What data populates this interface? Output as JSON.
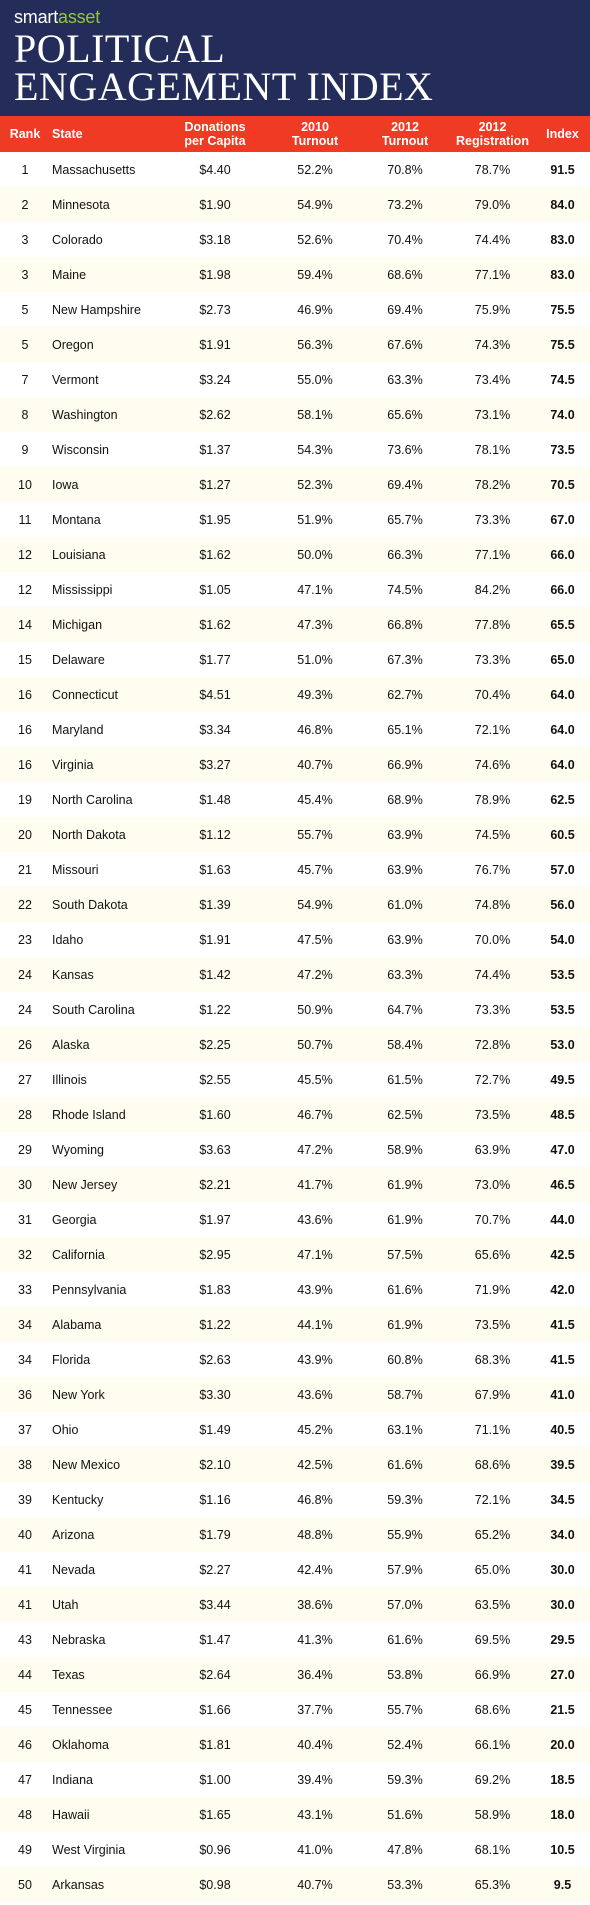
{
  "brand": {
    "part1": "smart",
    "part2": "asset"
  },
  "title": {
    "line1": "POLITICAL",
    "line2": "ENGAGEMENT INDEX"
  },
  "colors": {
    "header_bg": "#242d59",
    "header_row_bg": "#ef3b24",
    "brand_accent": "#91c73e",
    "alt_row_bg": "#fffdef"
  },
  "chart_data": {
    "type": "table",
    "columns": [
      {
        "key": "rank",
        "line1": "Rank",
        "line2": ""
      },
      {
        "key": "state",
        "line1": "State",
        "line2": ""
      },
      {
        "key": "donations",
        "line1": "Donations",
        "line2": "per Capita"
      },
      {
        "key": "turnout_2010",
        "line1": "2010",
        "line2": "Turnout"
      },
      {
        "key": "turnout_2012",
        "line1": "2012",
        "line2": "Turnout"
      },
      {
        "key": "registration_2012",
        "line1": "2012",
        "line2": "Registration"
      },
      {
        "key": "index",
        "line1": "Index",
        "line2": ""
      }
    ],
    "rows": [
      [
        "1",
        "Massachusetts",
        "$4.40",
        "52.2%",
        "70.8%",
        "78.7%",
        "91.5"
      ],
      [
        "2",
        "Minnesota",
        "$1.90",
        "54.9%",
        "73.2%",
        "79.0%",
        "84.0"
      ],
      [
        "3",
        "Colorado",
        "$3.18",
        "52.6%",
        "70.4%",
        "74.4%",
        "83.0"
      ],
      [
        "3",
        "Maine",
        "$1.98",
        "59.4%",
        "68.6%",
        "77.1%",
        "83.0"
      ],
      [
        "5",
        "New Hampshire",
        "$2.73",
        "46.9%",
        "69.4%",
        "75.9%",
        "75.5"
      ],
      [
        "5",
        "Oregon",
        "$1.91",
        "56.3%",
        "67.6%",
        "74.3%",
        "75.5"
      ],
      [
        "7",
        "Vermont",
        "$3.24",
        "55.0%",
        "63.3%",
        "73.4%",
        "74.5"
      ],
      [
        "8",
        "Washington",
        "$2.62",
        "58.1%",
        "65.6%",
        "73.1%",
        "74.0"
      ],
      [
        "9",
        "Wisconsin",
        "$1.37",
        "54.3%",
        "73.6%",
        "78.1%",
        "73.5"
      ],
      [
        "10",
        "Iowa",
        "$1.27",
        "52.3%",
        "69.4%",
        "78.2%",
        "70.5"
      ],
      [
        "11",
        "Montana",
        "$1.95",
        "51.9%",
        "65.7%",
        "73.3%",
        "67.0"
      ],
      [
        "12",
        "Louisiana",
        "$1.62",
        "50.0%",
        "66.3%",
        "77.1%",
        "66.0"
      ],
      [
        "12",
        "Mississippi",
        "$1.05",
        "47.1%",
        "74.5%",
        "84.2%",
        "66.0"
      ],
      [
        "14",
        "Michigan",
        "$1.62",
        "47.3%",
        "66.8%",
        "77.8%",
        "65.5"
      ],
      [
        "15",
        "Delaware",
        "$1.77",
        "51.0%",
        "67.3%",
        "73.3%",
        "65.0"
      ],
      [
        "16",
        "Connecticut",
        "$4.51",
        "49.3%",
        "62.7%",
        "70.4%",
        "64.0"
      ],
      [
        "16",
        "Maryland",
        "$3.34",
        "46.8%",
        "65.1%",
        "72.1%",
        "64.0"
      ],
      [
        "16",
        "Virginia",
        "$3.27",
        "40.7%",
        "66.9%",
        "74.6%",
        "64.0"
      ],
      [
        "19",
        "North Carolina",
        "$1.48",
        "45.4%",
        "68.9%",
        "78.9%",
        "62.5"
      ],
      [
        "20",
        "North Dakota",
        "$1.12",
        "55.7%",
        "63.9%",
        "74.5%",
        "60.5"
      ],
      [
        "21",
        "Missouri",
        "$1.63",
        "45.7%",
        "63.9%",
        "76.7%",
        "57.0"
      ],
      [
        "22",
        "South Dakota",
        "$1.39",
        "54.9%",
        "61.0%",
        "74.8%",
        "56.0"
      ],
      [
        "23",
        "Idaho",
        "$1.91",
        "47.5%",
        "63.9%",
        "70.0%",
        "54.0"
      ],
      [
        "24",
        "Kansas",
        "$1.42",
        "47.2%",
        "63.3%",
        "74.4%",
        "53.5"
      ],
      [
        "24",
        "South Carolina",
        "$1.22",
        "50.9%",
        "64.7%",
        "73.3%",
        "53.5"
      ],
      [
        "26",
        "Alaska",
        "$2.25",
        "50.7%",
        "58.4%",
        "72.8%",
        "53.0"
      ],
      [
        "27",
        "Illinois",
        "$2.55",
        "45.5%",
        "61.5%",
        "72.7%",
        "49.5"
      ],
      [
        "28",
        "Rhode Island",
        "$1.60",
        "46.7%",
        "62.5%",
        "73.5%",
        "48.5"
      ],
      [
        "29",
        "Wyoming",
        "$3.63",
        "47.2%",
        "58.9%",
        "63.9%",
        "47.0"
      ],
      [
        "30",
        "New Jersey",
        "$2.21",
        "41.7%",
        "61.9%",
        "73.0%",
        "46.5"
      ],
      [
        "31",
        "Georgia",
        "$1.97",
        "43.6%",
        "61.9%",
        "70.7%",
        "44.0"
      ],
      [
        "32",
        "California",
        "$2.95",
        "47.1%",
        "57.5%",
        "65.6%",
        "42.5"
      ],
      [
        "33",
        "Pennsylvania",
        "$1.83",
        "43.9%",
        "61.6%",
        "71.9%",
        "42.0"
      ],
      [
        "34",
        "Alabama",
        "$1.22",
        "44.1%",
        "61.9%",
        "73.5%",
        "41.5"
      ],
      [
        "34",
        "Florida",
        "$2.63",
        "43.9%",
        "60.8%",
        "68.3%",
        "41.5"
      ],
      [
        "36",
        "New York",
        "$3.30",
        "43.6%",
        "58.7%",
        "67.9%",
        "41.0"
      ],
      [
        "37",
        "Ohio",
        "$1.49",
        "45.2%",
        "63.1%",
        "71.1%",
        "40.5"
      ],
      [
        "38",
        "New Mexico",
        "$2.10",
        "42.5%",
        "61.6%",
        "68.6%",
        "39.5"
      ],
      [
        "39",
        "Kentucky",
        "$1.16",
        "46.8%",
        "59.3%",
        "72.1%",
        "34.5"
      ],
      [
        "40",
        "Arizona",
        "$1.79",
        "48.8%",
        "55.9%",
        "65.2%",
        "34.0"
      ],
      [
        "41",
        "Nevada",
        "$2.27",
        "42.4%",
        "57.9%",
        "65.0%",
        "30.0"
      ],
      [
        "41",
        "Utah",
        "$3.44",
        "38.6%",
        "57.0%",
        "63.5%",
        "30.0"
      ],
      [
        "43",
        "Nebraska",
        "$1.47",
        "41.3%",
        "61.6%",
        "69.5%",
        "29.5"
      ],
      [
        "44",
        "Texas",
        "$2.64",
        "36.4%",
        "53.8%",
        "66.9%",
        "27.0"
      ],
      [
        "45",
        "Tennessee",
        "$1.66",
        "37.7%",
        "55.7%",
        "68.6%",
        "21.5"
      ],
      [
        "46",
        "Oklahoma",
        "$1.81",
        "40.4%",
        "52.4%",
        "66.1%",
        "20.0"
      ],
      [
        "47",
        "Indiana",
        "$1.00",
        "39.4%",
        "59.3%",
        "69.2%",
        "18.5"
      ],
      [
        "48",
        "Hawaii",
        "$1.65",
        "43.1%",
        "51.6%",
        "58.9%",
        "18.0"
      ],
      [
        "49",
        "West Virginia",
        "$0.96",
        "41.0%",
        "47.8%",
        "68.1%",
        "10.5"
      ],
      [
        "50",
        "Arkansas",
        "$0.98",
        "40.7%",
        "53.3%",
        "65.3%",
        "9.5"
      ]
    ]
  }
}
